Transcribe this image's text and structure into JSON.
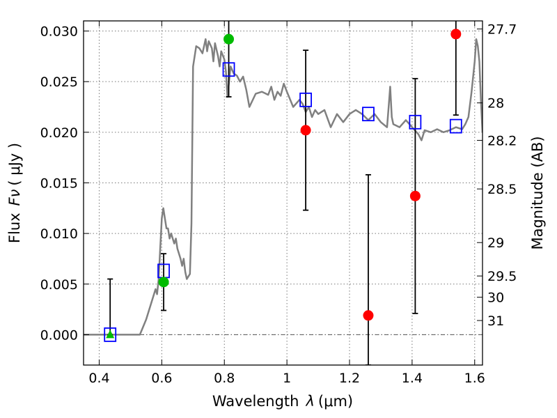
{
  "chart_data": {
    "type": "scatter",
    "xlabel_text": "Wavelength",
    "xlabel_symbol": "λ",
    "xlabel_unit": "(μm)",
    "ylabel_text": "Flux",
    "ylabel_symbol": "Fν",
    "ylabel_unit": "( μJy )",
    "y2label": "Magnitude (AB)",
    "xlim": [
      0.35,
      1.625
    ],
    "ylim": [
      -0.003,
      0.031
    ],
    "grid": true,
    "x_ticks": [
      {
        "value": 0.4,
        "label": "0.4"
      },
      {
        "value": 0.6,
        "label": "0.6"
      },
      {
        "value": 0.8,
        "label": "0.8"
      },
      {
        "value": 1.0,
        "label": "1"
      },
      {
        "value": 1.2,
        "label": "1.2"
      },
      {
        "value": 1.4,
        "label": "1.4"
      },
      {
        "value": 1.6,
        "label": "1.6"
      }
    ],
    "y_ticks": [
      {
        "value": 0.0,
        "label": "0.000"
      },
      {
        "value": 0.005,
        "label": "0.005"
      },
      {
        "value": 0.01,
        "label": "0.010"
      },
      {
        "value": 0.015,
        "label": "0.015"
      },
      {
        "value": 0.02,
        "label": "0.020"
      },
      {
        "value": 0.025,
        "label": "0.025"
      },
      {
        "value": 0.03,
        "label": "0.030"
      }
    ],
    "y2_ticks": [
      {
        "flux": 0.0302,
        "label": "27.7"
      },
      {
        "flux": 0.0229,
        "label": "28"
      },
      {
        "flux": 0.0192,
        "label": "28.2"
      },
      {
        "flux": 0.0144,
        "label": "28.5"
      },
      {
        "flux": 0.0091,
        "label": "29"
      },
      {
        "flux": 0.0058,
        "label": "29.5"
      },
      {
        "flux": 0.0037,
        "label": "30"
      },
      {
        "flux": 0.0014,
        "label": "31"
      }
    ],
    "model_spectrum": {
      "color": "#808080",
      "x": [
        0.35,
        0.5,
        0.515,
        0.53,
        0.55,
        0.57,
        0.58,
        0.585,
        0.59,
        0.595,
        0.6,
        0.605,
        0.61,
        0.615,
        0.62,
        0.625,
        0.63,
        0.64,
        0.645,
        0.65,
        0.66,
        0.665,
        0.67,
        0.675,
        0.68,
        0.69,
        0.695,
        0.7,
        0.71,
        0.72,
        0.73,
        0.74,
        0.745,
        0.75,
        0.76,
        0.765,
        0.77,
        0.78,
        0.785,
        0.79,
        0.8,
        0.805,
        0.81,
        0.82,
        0.83,
        0.84,
        0.85,
        0.86,
        0.87,
        0.88,
        0.9,
        0.92,
        0.94,
        0.95,
        0.96,
        0.97,
        0.98,
        0.99,
        1.0,
        1.02,
        1.04,
        1.05,
        1.06,
        1.07,
        1.08,
        1.09,
        1.1,
        1.12,
        1.14,
        1.16,
        1.18,
        1.2,
        1.22,
        1.24,
        1.26,
        1.28,
        1.3,
        1.32,
        1.325,
        1.33,
        1.335,
        1.34,
        1.36,
        1.38,
        1.4,
        1.42,
        1.43,
        1.44,
        1.46,
        1.48,
        1.5,
        1.52,
        1.54,
        1.56,
        1.57,
        1.58,
        1.59,
        1.6,
        1.605,
        1.61,
        1.615,
        1.62,
        1.625
      ],
      "y": [
        0.0,
        0.0,
        0.0,
        0.0,
        0.0015,
        0.0035,
        0.0045,
        0.004,
        0.0055,
        0.0085,
        0.0115,
        0.0125,
        0.0115,
        0.0105,
        0.0105,
        0.0095,
        0.01,
        0.009,
        0.0095,
        0.0085,
        0.0075,
        0.0068,
        0.0075,
        0.0062,
        0.0055,
        0.006,
        0.011,
        0.0265,
        0.0285,
        0.0283,
        0.0278,
        0.0292,
        0.028,
        0.029,
        0.0283,
        0.027,
        0.0288,
        0.0275,
        0.0265,
        0.028,
        0.0272,
        0.026,
        0.0235,
        0.0265,
        0.0258,
        0.0256,
        0.025,
        0.0255,
        0.0242,
        0.0225,
        0.0238,
        0.024,
        0.0237,
        0.0245,
        0.0232,
        0.024,
        0.0236,
        0.0248,
        0.024,
        0.0225,
        0.0232,
        0.0228,
        0.022,
        0.0225,
        0.0215,
        0.0222,
        0.0218,
        0.0222,
        0.0205,
        0.0218,
        0.021,
        0.0218,
        0.0222,
        0.0218,
        0.0212,
        0.0218,
        0.021,
        0.0205,
        0.0225,
        0.0245,
        0.0215,
        0.0208,
        0.0205,
        0.0212,
        0.0205,
        0.0198,
        0.0192,
        0.0202,
        0.02,
        0.0203,
        0.02,
        0.0202,
        0.0205,
        0.0203,
        0.0208,
        0.0215,
        0.024,
        0.027,
        0.0292,
        0.0285,
        0.027,
        0.023,
        0.02
      ]
    },
    "model_bandpass": {
      "color": "#0000ff",
      "x": [
        0.435,
        0.606,
        0.814,
        1.06,
        1.26,
        1.41,
        1.54
      ],
      "y": [
        0.0,
        0.0063,
        0.0262,
        0.0232,
        0.0218,
        0.021,
        0.0206
      ]
    },
    "detections": {
      "color": "#00bb00",
      "x": [
        0.606,
        0.814
      ],
      "y": [
        0.0052,
        0.0292
      ],
      "err_lo": [
        0.0024,
        0.0235
      ],
      "err_hi": [
        0.008,
        0.0312
      ]
    },
    "nondetections": {
      "color": "#ff0000",
      "x": [
        1.06,
        1.26,
        1.41,
        1.54
      ],
      "y": [
        0.0202,
        0.0019,
        0.0137,
        0.0297
      ],
      "err_lo": [
        0.0123,
        -0.003,
        0.0021,
        0.0217
      ],
      "err_hi": [
        0.0281,
        0.0158,
        0.0253,
        0.0312
      ]
    },
    "upper_limit": {
      "color": "#00bb00",
      "x": 0.435,
      "y": 0.0,
      "err_hi": 0.0055
    }
  }
}
